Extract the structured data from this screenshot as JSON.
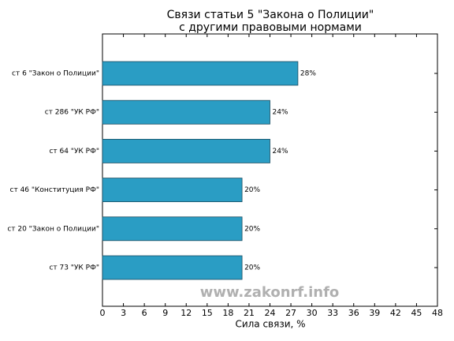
{
  "chart_data": {
    "type": "barh",
    "title": "Связи статьи 5 \"Закона о Полиции\"",
    "subtitle": "с другими правовыми нормами",
    "x_label": "Сила связи, %",
    "annotation": "www.zakonrf.info",
    "categories": [
      "ст 6 \"Закон о Полиции\"",
      "ст 286 \"УК РФ\"",
      "ст 64 \"УК РФ\"",
      "ст 46 \"Конституция РФ\"",
      "ст 20 \"Закон о Полиции\"",
      "ст 73 \"УК РФ\""
    ],
    "values": [
      28,
      24,
      24,
      20,
      20,
      20
    ],
    "value_labels": [
      "28%",
      "24%",
      "24%",
      "20%",
      "20%",
      "20%"
    ],
    "color": "#2a9dc4",
    "xlim": [
      0,
      48
    ],
    "xticks": [
      0,
      3,
      6,
      9,
      12,
      15,
      18,
      21,
      24,
      27,
      30,
      33,
      36,
      39,
      42,
      45,
      48
    ]
  }
}
